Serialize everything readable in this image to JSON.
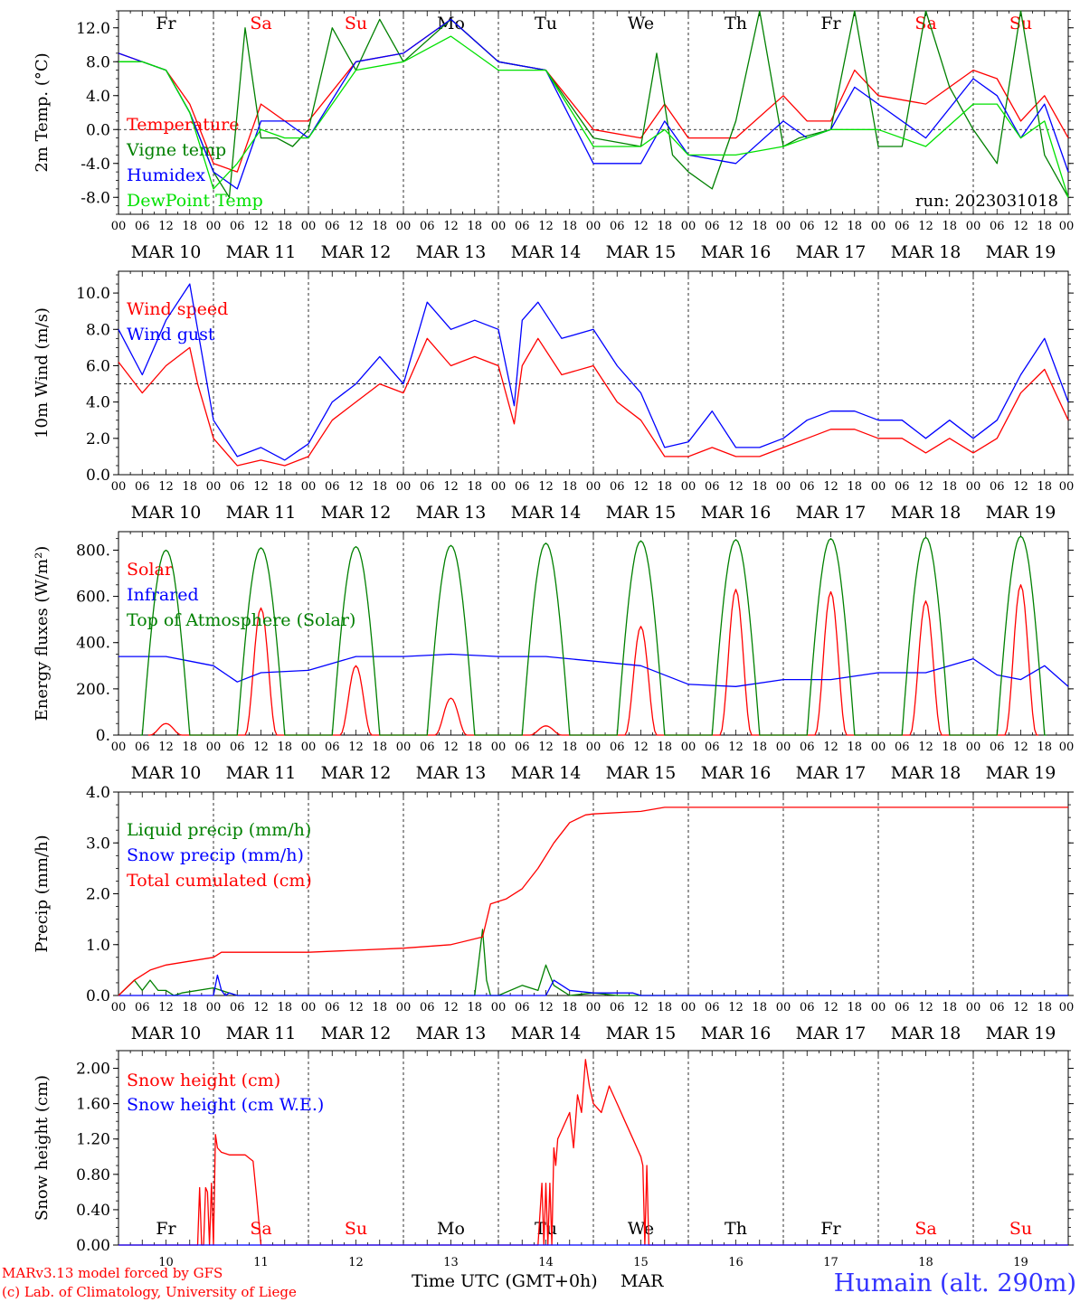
{
  "footer": {
    "model_note": "MARv3.13 model forced by GFS",
    "copyright": "(c) Lab. of Climatology, University of Liege",
    "xlabel": "Time UTC (GMT+0h)",
    "month": "MAR",
    "station": "Humain (alt. 290m)"
  },
  "colors": {
    "red": "#ff0000",
    "green": "#008000",
    "blue": "#0000ff",
    "lightgreen": "#00e000",
    "weekend": "#ff0000",
    "weekday": "#000000",
    "station": "#3333ff"
  },
  "axis": {
    "hour_ticks": [
      "00",
      "06",
      "12",
      "18"
    ],
    "last_tick": "00",
    "dates": [
      "MAR 10",
      "MAR 11",
      "MAR 12",
      "MAR 13",
      "MAR 14",
      "MAR 15",
      "MAR 16",
      "MAR 17",
      "MAR 18",
      "MAR 19"
    ],
    "day_numbers": [
      "10",
      "11",
      "12",
      "13",
      "14",
      "15",
      "16",
      "17",
      "18",
      "19"
    ],
    "weekdays": [
      "Fr",
      "Sa",
      "Su",
      "Mo",
      "Tu",
      "We",
      "Th",
      "Fr",
      "Sa",
      "Su"
    ],
    "weekend_flags": [
      false,
      true,
      true,
      false,
      false,
      false,
      false,
      false,
      true,
      true
    ]
  },
  "chart_data": [
    {
      "type": "line",
      "ylabel": "2m Temp. (°C)",
      "ylim": [
        -10,
        14
      ],
      "yticks": [
        -8,
        -4,
        0,
        4,
        8,
        12
      ],
      "ytick_labels": [
        "-8.0",
        "-4.0",
        "0.0",
        "4.0",
        "8.0",
        "12.0"
      ],
      "hline": 0,
      "annotation": "run: 2023031018",
      "x_unit": "hours since MAR 10 00 UTC",
      "series": [
        {
          "name": "Temperature",
          "color": "red",
          "x": [
            0,
            6,
            12,
            18,
            24,
            30,
            36,
            42,
            48,
            60,
            72,
            84,
            96,
            108,
            120,
            132,
            138,
            144,
            156,
            168,
            174,
            180,
            186,
            192,
            204,
            216,
            222,
            228,
            234,
            240
          ],
          "values": [
            9,
            8,
            7,
            3,
            -4,
            -5,
            3,
            1,
            1,
            8,
            9,
            13,
            8,
            7,
            0,
            -1,
            3,
            -1,
            -1,
            4,
            1,
            1,
            7,
            4,
            3,
            7,
            6,
            1,
            4,
            -1
          ]
        },
        {
          "name": "Vigne temp",
          "color": "green",
          "x": [
            0,
            6,
            12,
            18,
            24,
            28,
            32,
            36,
            40,
            44,
            48,
            54,
            60,
            66,
            72,
            84,
            96,
            108,
            120,
            132,
            136,
            140,
            144,
            150,
            156,
            162,
            168,
            172,
            180,
            186,
            192,
            198,
            204,
            210,
            216,
            222,
            228,
            234,
            240
          ],
          "values": [
            8,
            8,
            7,
            2,
            -5,
            -8,
            12,
            -1,
            -1,
            -2,
            0,
            12,
            7,
            13,
            8,
            13,
            8,
            7,
            -1,
            -2,
            9,
            -3,
            -5,
            -7,
            1,
            14,
            -2,
            -1,
            0,
            14,
            -2,
            -2,
            14,
            5,
            0,
            -4,
            14,
            -3,
            -8
          ]
        },
        {
          "name": "Humidex",
          "color": "blue",
          "x": [
            0,
            6,
            12,
            18,
            24,
            30,
            36,
            42,
            48,
            60,
            72,
            84,
            96,
            108,
            120,
            132,
            138,
            144,
            156,
            168,
            174,
            180,
            186,
            192,
            204,
            216,
            222,
            228,
            234,
            240
          ],
          "values": [
            9,
            8,
            7,
            2,
            -5,
            -7,
            1,
            1,
            -1,
            8,
            9,
            13,
            8,
            7,
            -4,
            -4,
            1,
            -3,
            -4,
            1,
            -1,
            0,
            5,
            3,
            -1,
            6,
            4,
            -1,
            3,
            -5
          ]
        },
        {
          "name": "DewPoint Temp",
          "color": "lightgreen",
          "x": [
            0,
            6,
            12,
            18,
            24,
            30,
            36,
            42,
            48,
            60,
            72,
            84,
            96,
            108,
            120,
            132,
            138,
            144,
            156,
            168,
            174,
            180,
            186,
            192,
            204,
            216,
            222,
            228,
            234,
            240
          ],
          "values": [
            8,
            8,
            7,
            2,
            -7,
            -4,
            0,
            -1,
            -1,
            7,
            8,
            11,
            7,
            7,
            -2,
            -2,
            0,
            -3,
            -3,
            -2,
            -1,
            0,
            0,
            0,
            -2,
            3,
            3,
            -1,
            1,
            -8
          ]
        }
      ]
    },
    {
      "type": "line",
      "ylabel": "10m Wind (m/s)",
      "ylim": [
        0,
        11.2
      ],
      "yticks": [
        0,
        2,
        4,
        6,
        8,
        10
      ],
      "ytick_labels": [
        "0.0",
        "2.0",
        "4.0",
        "6.0",
        "8.0",
        "10.0"
      ],
      "hline": 5,
      "x_unit": "hours since MAR 10 00 UTC",
      "series": [
        {
          "name": "Wind speed",
          "color": "red",
          "x": [
            0,
            6,
            12,
            18,
            20,
            24,
            30,
            36,
            42,
            48,
            54,
            60,
            66,
            72,
            78,
            84,
            90,
            96,
            100,
            102,
            106,
            112,
            120,
            126,
            132,
            138,
            144,
            150,
            156,
            162,
            168,
            174,
            180,
            186,
            192,
            198,
            204,
            210,
            216,
            222,
            228,
            234,
            240
          ],
          "values": [
            6.2,
            4.5,
            6,
            7,
            5,
            2,
            0.5,
            0.8,
            0.5,
            1,
            3,
            4,
            5,
            4.5,
            7.5,
            6,
            6.5,
            6,
            2.8,
            6,
            7.5,
            5.5,
            6,
            4,
            3,
            1,
            1,
            1.5,
            1,
            1,
            1.5,
            2,
            2.5,
            2.5,
            2,
            2,
            1.2,
            2,
            1.2,
            2,
            4.5,
            5.8,
            3
          ]
        },
        {
          "name": "Wind gust",
          "color": "blue",
          "x": [
            0,
            6,
            12,
            18,
            20,
            24,
            30,
            36,
            42,
            48,
            54,
            60,
            66,
            72,
            78,
            84,
            90,
            96,
            100,
            102,
            106,
            112,
            120,
            126,
            132,
            138,
            144,
            150,
            156,
            162,
            168,
            174,
            180,
            186,
            192,
            198,
            204,
            210,
            216,
            222,
            228,
            234,
            240
          ],
          "values": [
            8,
            5.5,
            8.5,
            10.5,
            8,
            3,
            1,
            1.5,
            0.8,
            1.7,
            4,
            5,
            6.5,
            5,
            9.5,
            8,
            8.5,
            8,
            3.8,
            8.5,
            9.5,
            7.5,
            8,
            6,
            4.5,
            1.5,
            1.8,
            3.5,
            1.5,
            1.5,
            2,
            3,
            3.5,
            3.5,
            3,
            3,
            2,
            3,
            2,
            3,
            5.5,
            7.5,
            4
          ]
        }
      ]
    },
    {
      "type": "line",
      "ylabel": "Energy fluxes (W/m²)",
      "ylim": [
        0,
        880
      ],
      "yticks": [
        0,
        200,
        400,
        600,
        800
      ],
      "ytick_labels": [
        "0.",
        "200.",
        "400.",
        "600.",
        "800."
      ],
      "x_unit": "hours since MAR 10 00 UTC",
      "series": [
        {
          "name": "Solar",
          "color": "red",
          "daily_peak": [
            50,
            550,
            300,
            160,
            40,
            470,
            630,
            620,
            580,
            650
          ]
        },
        {
          "name": "Infrared",
          "color": "blue",
          "x": [
            0,
            6,
            12,
            18,
            24,
            30,
            36,
            48,
            60,
            72,
            84,
            96,
            108,
            120,
            132,
            144,
            156,
            168,
            180,
            192,
            204,
            216,
            222,
            228,
            234,
            240
          ],
          "values": [
            340,
            340,
            340,
            320,
            300,
            230,
            270,
            280,
            340,
            340,
            350,
            340,
            340,
            320,
            300,
            220,
            210,
            240,
            240,
            270,
            270,
            330,
            260,
            240,
            300,
            210
          ]
        },
        {
          "name": "Top of Atmosphere (Solar)",
          "color": "green",
          "daily_peak": [
            800,
            810,
            815,
            820,
            830,
            840,
            845,
            850,
            855,
            860
          ]
        }
      ]
    },
    {
      "type": "line",
      "ylabel": "Precip (mm/h)",
      "ylim": [
        0,
        4
      ],
      "yticks": [
        0,
        1,
        2,
        3,
        4
      ],
      "ytick_labels": [
        "0.0",
        "1.0",
        "2.0",
        "3.0",
        "4.0"
      ],
      "x_unit": "hours since MAR 10 00 UTC",
      "series": [
        {
          "name": "Liquid precip (mm/h)",
          "color": "green",
          "x": [
            0,
            4,
            6,
            8,
            10,
            12,
            14,
            16,
            24,
            28,
            30,
            60,
            90,
            92,
            93,
            94,
            96,
            102,
            106,
            108,
            110,
            112,
            114,
            120,
            126,
            132,
            240
          ],
          "values": [
            0,
            0.3,
            0.1,
            0.3,
            0.1,
            0.1,
            0,
            0.05,
            0.15,
            0.05,
            0,
            0,
            0,
            1.3,
            0.3,
            0,
            0,
            0.2,
            0.1,
            0.6,
            0.2,
            0.1,
            0,
            0.05,
            0,
            0,
            0
          ]
        },
        {
          "name": "Snow precip (mm/h)",
          "color": "blue",
          "x": [
            0,
            24,
            25,
            26,
            27,
            28,
            30,
            96,
            108,
            110,
            114,
            120,
            130,
            132,
            240
          ],
          "values": [
            0,
            0,
            0.4,
            0.1,
            0,
            0.05,
            0,
            0,
            0,
            0.3,
            0.1,
            0.05,
            0.05,
            0,
            0
          ]
        },
        {
          "name": "Total cumulated (cm)",
          "color": "red",
          "x": [
            0,
            4,
            8,
            12,
            24,
            26,
            48,
            72,
            84,
            92,
            94,
            98,
            102,
            106,
            110,
            114,
            118,
            120,
            132,
            138,
            240
          ],
          "values": [
            0,
            0.3,
            0.5,
            0.6,
            0.75,
            0.85,
            0.85,
            0.93,
            1.0,
            1.15,
            1.8,
            1.9,
            2.1,
            2.5,
            3.0,
            3.4,
            3.55,
            3.57,
            3.62,
            3.7,
            3.7
          ]
        }
      ]
    },
    {
      "type": "line",
      "ylabel": "Snow height (cm)",
      "ylim": [
        0,
        2.2
      ],
      "yticks": [
        0,
        0.4,
        0.8,
        1.2,
        1.6,
        2.0
      ],
      "ytick_labels": [
        "0.00",
        "0.40",
        "0.80",
        "1.20",
        "1.60",
        "2.00"
      ],
      "x_unit": "hours since MAR 10 00 UTC",
      "series": [
        {
          "name": "Snow height (cm)",
          "color": "red",
          "x": [
            0,
            20,
            20.5,
            21,
            21.5,
            22,
            22.5,
            23,
            23.5,
            24,
            24.5,
            25,
            26,
            28,
            32,
            34,
            35,
            36,
            106,
            107,
            107.5,
            108,
            108.5,
            109,
            109.5,
            110,
            110.5,
            111,
            112,
            114,
            115,
            116,
            117,
            118,
            119,
            120,
            122,
            124,
            126,
            128,
            130,
            132,
            132.5,
            133,
            133.5,
            134,
            240
          ],
          "values": [
            0,
            0,
            0.65,
            0,
            0,
            0.65,
            0.6,
            0,
            0.7,
            0,
            1.25,
            1.1,
            1.05,
            1.02,
            1.02,
            0.95,
            0.5,
            0,
            0,
            0.7,
            0,
            0.7,
            0,
            0.7,
            0,
            1.1,
            0.9,
            1.2,
            1.3,
            1.5,
            1.1,
            1.7,
            1.5,
            2.1,
            1.8,
            1.6,
            1.5,
            1.8,
            1.6,
            1.4,
            1.2,
            1.0,
            0.9,
            0,
            0.9,
            0,
            0
          ]
        },
        {
          "name": "Snow height (cm W.E.)",
          "color": "blue",
          "x": [
            0,
            240
          ],
          "values": [
            0,
            0
          ]
        }
      ]
    }
  ]
}
